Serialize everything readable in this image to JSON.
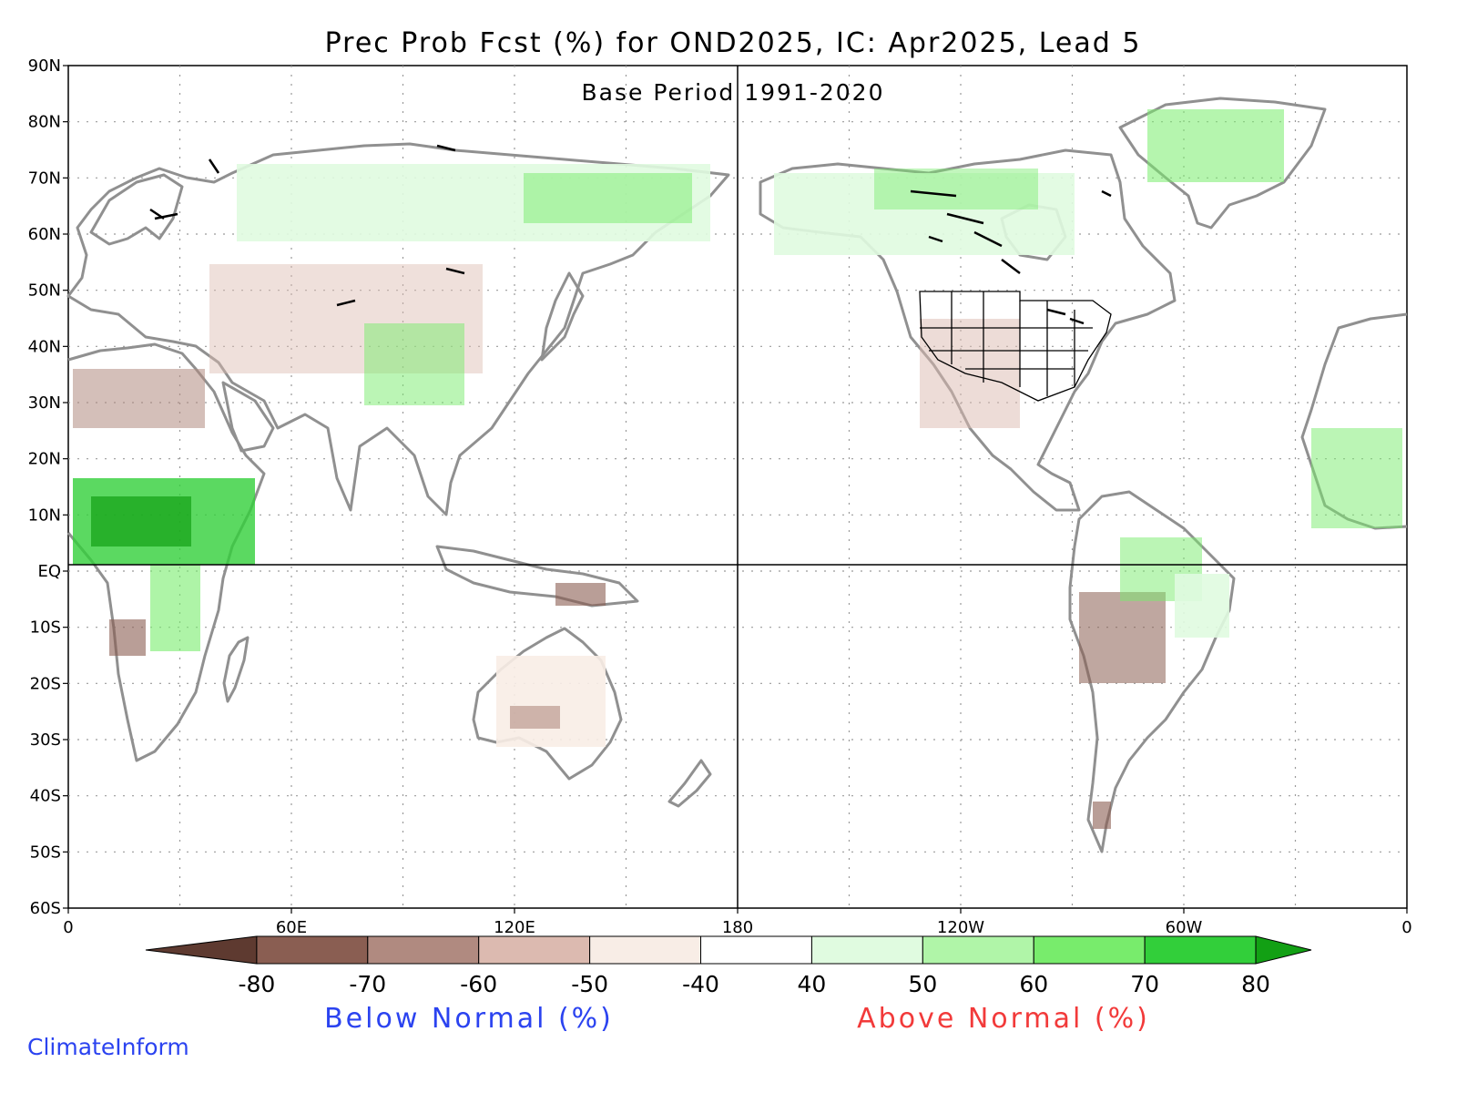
{
  "map": {
    "title": "Prec Prob Fcst (%) for OND2025, IC: Apr2025, Lead 5",
    "subtitle": "Base Period 1991-2020",
    "lat_labels": [
      "90N",
      "80N",
      "70N",
      "60N",
      "50N",
      "40N",
      "30N",
      "20N",
      "10N",
      "EQ",
      "10S",
      "20S",
      "30S",
      "40S",
      "50S",
      "60S"
    ],
    "lon_labels": [
      "0",
      "60E",
      "120E",
      "180",
      "120W",
      "60W",
      "0"
    ],
    "lon_label_degrees": [
      0,
      60,
      120,
      180,
      240,
      300,
      360
    ],
    "lat_range": [
      -60,
      90
    ],
    "lon_range": [
      0,
      360
    ],
    "grid": true
  },
  "colorbar": {
    "ticks": [
      "-80",
      "-70",
      "-60",
      "-50",
      "-40",
      "40",
      "50",
      "60",
      "70",
      "80"
    ],
    "colors": [
      "#5e3a30",
      "#8a5e52",
      "#b08a80",
      "#dcbab0",
      "#f8ede6",
      "#ffffff",
      "#e0fbe0",
      "#b0f5a8",
      "#78ec6c",
      "#32cf3a",
      "#12a014"
    ],
    "below_label": "Below Normal (%)",
    "above_label": "Above Normal (%)"
  },
  "credit": "ClimateInform",
  "colors": {
    "land_outline": "#909090",
    "boundary": "#000000",
    "axis": "#000000"
  }
}
